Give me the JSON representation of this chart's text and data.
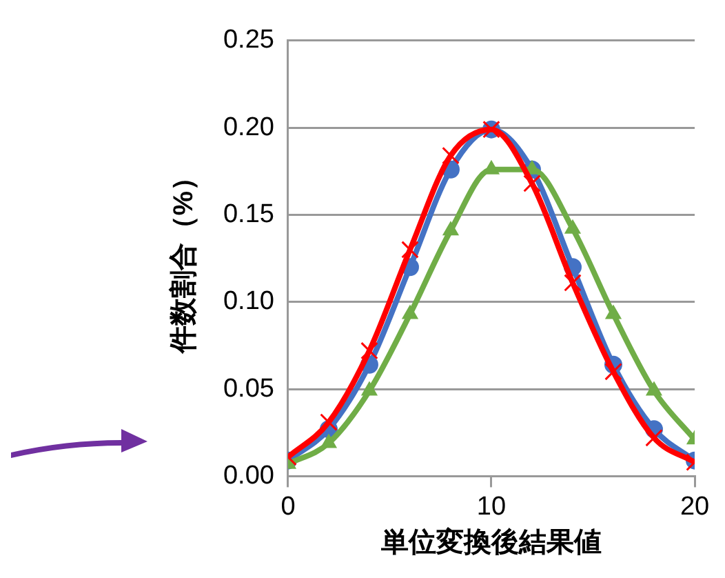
{
  "chart_data": {
    "type": "line",
    "xlabel": "単位変換後結果値",
    "ylabel": "件数割合（%）",
    "x": [
      0,
      2,
      4,
      6,
      8,
      10,
      12,
      14,
      16,
      18,
      20
    ],
    "series": [
      {
        "color": "#4472c4",
        "marker": "circle",
        "values": [
          0.009,
          0.027,
          0.064,
          0.12,
          0.176,
          0.199,
          0.176,
          0.12,
          0.064,
          0.027,
          0.009
        ]
      },
      {
        "color": "#70ad47",
        "marker": "triangle",
        "values": [
          0.007,
          0.019,
          0.049,
          0.093,
          0.141,
          0.176,
          0.176,
          0.142,
          0.093,
          0.049,
          0.021
        ]
      },
      {
        "color": "#ff0000",
        "marker": "cross",
        "values": [
          0.011,
          0.031,
          0.072,
          0.13,
          0.184,
          0.199,
          0.168,
          0.111,
          0.06,
          0.022,
          0.008
        ]
      }
    ],
    "xlim": [
      0,
      20
    ],
    "xticks": [
      0,
      10,
      20
    ],
    "ylim": [
      0,
      0.25
    ],
    "yticks": [
      {
        "value": 0,
        "label": "0.00"
      },
      {
        "value": 0.05,
        "label": "0.05"
      },
      {
        "value": 0.1,
        "label": "0.10"
      },
      {
        "value": 0.15,
        "label": "0.15"
      },
      {
        "value": 0.2,
        "label": "0.20"
      },
      {
        "value": 0.25,
        "label": "0.25"
      }
    ],
    "grid": "y",
    "legend": false
  }
}
